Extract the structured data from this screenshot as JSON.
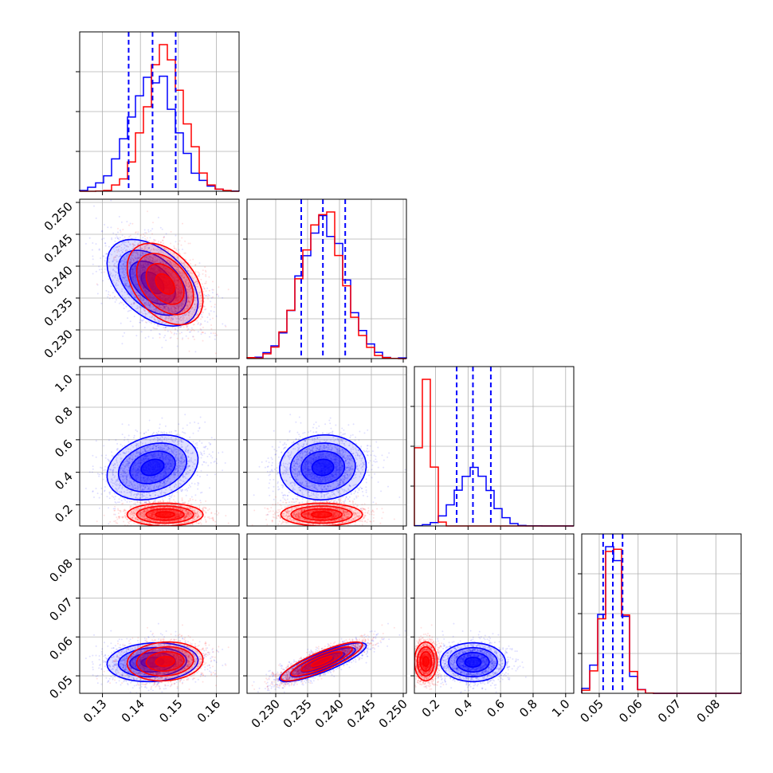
{
  "chart_data": {
    "type": "corner",
    "grid": true,
    "params": [
      {
        "range": [
          0.124,
          0.166
        ],
        "ticks": [
          0.13,
          0.14,
          0.15,
          0.16
        ],
        "tick_labels": [
          "0.13",
          "0.14",
          "0.15",
          "0.16"
        ]
      },
      {
        "range": [
          0.2255,
          0.2505
        ],
        "ticks": [
          0.23,
          0.235,
          0.24,
          0.245,
          0.25
        ],
        "tick_labels": [
          "0.230",
          "0.235",
          "0.240",
          "0.245",
          "0.250"
        ]
      },
      {
        "range": [
          0.07,
          1.05
        ],
        "ticks": [
          0.2,
          0.4,
          0.6,
          0.8,
          1.0
        ],
        "tick_labels": [
          "0.2",
          "0.4",
          "0.6",
          "0.8",
          "1.0"
        ]
      },
      {
        "range": [
          0.0455,
          0.0865
        ],
        "ticks": [
          0.05,
          0.06,
          0.07,
          0.08
        ],
        "tick_labels": [
          "0.05",
          "0.06",
          "0.07",
          "0.08"
        ]
      }
    ],
    "series": [
      {
        "color": "#0000ff",
        "mean": [
          0.1432,
          0.2374,
          0.43,
          0.0535
        ],
        "std": [
          0.006,
          0.0034,
          0.1,
          0.0025
        ],
        "corr": [
          [
            1,
            -0.45,
            0.25,
            0.1
          ],
          [
            -0.45,
            1,
            0.05,
            0.85
          ],
          [
            0.25,
            0.05,
            1,
            0
          ],
          [
            0.1,
            0.85,
            0,
            1
          ]
        ],
        "quantiles": [
          [
            0.1369,
            0.1432,
            0.1493
          ],
          [
            0.234,
            0.2374,
            0.2409
          ],
          [
            0.33,
            0.43,
            0.54
          ],
          [
            0.051,
            0.0535,
            0.056
          ]
        ]
      },
      {
        "color": "#ff0000",
        "mean": [
          0.1465,
          0.2372,
          0.14,
          0.0537
        ],
        "std": [
          0.005,
          0.0032,
          0.035,
          0.0025
        ],
        "corr": [
          [
            1,
            -0.4,
            0,
            0.1
          ],
          [
            -0.4,
            1,
            0,
            0.85
          ],
          [
            0,
            0,
            1,
            0
          ],
          [
            0.1,
            0.85,
            0,
            1
          ]
        ]
      }
    ]
  }
}
